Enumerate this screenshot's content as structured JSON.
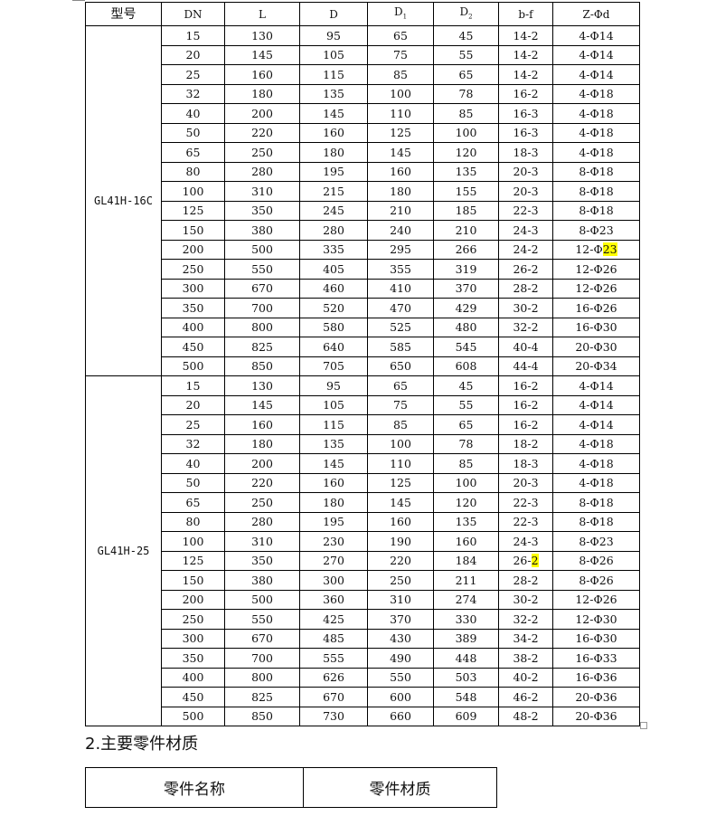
{
  "spec_table": {
    "headers": [
      "型号",
      "DN",
      "L",
      "D",
      "D1",
      "D2",
      "b-f",
      "Z-Φd"
    ],
    "groups": [
      {
        "model": "GL41H-16C",
        "rows": [
          [
            "15",
            "130",
            "95",
            "65",
            "45",
            "14-2",
            "4-Φ14"
          ],
          [
            "20",
            "145",
            "105",
            "75",
            "55",
            "14-2",
            "4-Φ14"
          ],
          [
            "25",
            "160",
            "115",
            "85",
            "65",
            "14-2",
            "4-Φ14"
          ],
          [
            "32",
            "180",
            "135",
            "100",
            "78",
            "16-2",
            "4-Φ18"
          ],
          [
            "40",
            "200",
            "145",
            "110",
            "85",
            "16-3",
            "4-Φ18"
          ],
          [
            "50",
            "220",
            "160",
            "125",
            "100",
            "16-3",
            "4-Φ18"
          ],
          [
            "65",
            "250",
            "180",
            "145",
            "120",
            "18-3",
            "4-Φ18"
          ],
          [
            "80",
            "280",
            "195",
            "160",
            "135",
            "20-3",
            "8-Φ18"
          ],
          [
            "100",
            "310",
            "215",
            "180",
            "155",
            "20-3",
            "8-Φ18"
          ],
          [
            "125",
            "350",
            "245",
            "210",
            "185",
            "22-3",
            "8-Φ18"
          ],
          [
            "150",
            "380",
            "280",
            "240",
            "210",
            "24-3",
            "8-Φ23"
          ],
          [
            "200",
            "500",
            "335",
            "295",
            "266",
            "24-2",
            "12-Φ23"
          ],
          [
            "250",
            "550",
            "405",
            "355",
            "319",
            "26-2",
            "12-Φ26"
          ],
          [
            "300",
            "670",
            "460",
            "410",
            "370",
            "28-2",
            "12-Φ26"
          ],
          [
            "350",
            "700",
            "520",
            "470",
            "429",
            "30-2",
            "16-Φ26"
          ],
          [
            "400",
            "800",
            "580",
            "525",
            "480",
            "32-2",
            "16-Φ30"
          ],
          [
            "450",
            "825",
            "640",
            "585",
            "545",
            "40-4",
            "20-Φ30"
          ],
          [
            "500",
            "850",
            "705",
            "650",
            "608",
            "44-4",
            "20-Φ34"
          ]
        ]
      },
      {
        "model": "GL41H-25",
        "rows": [
          [
            "15",
            "130",
            "95",
            "65",
            "45",
            "16-2",
            "4-Φ14"
          ],
          [
            "20",
            "145",
            "105",
            "75",
            "55",
            "16-2",
            "4-Φ14"
          ],
          [
            "25",
            "160",
            "115",
            "85",
            "65",
            "16-2",
            "4-Φ14"
          ],
          [
            "32",
            "180",
            "135",
            "100",
            "78",
            "18-2",
            "4-Φ18"
          ],
          [
            "40",
            "200",
            "145",
            "110",
            "85",
            "18-3",
            "4-Φ18"
          ],
          [
            "50",
            "220",
            "160",
            "125",
            "100",
            "20-3",
            "4-Φ18"
          ],
          [
            "65",
            "250",
            "180",
            "145",
            "120",
            "22-3",
            "8-Φ18"
          ],
          [
            "80",
            "280",
            "195",
            "160",
            "135",
            "22-3",
            "8-Φ18"
          ],
          [
            "100",
            "310",
            "230",
            "190",
            "160",
            "24-3",
            "8-Φ23"
          ],
          [
            "125",
            "350",
            "270",
            "220",
            "184",
            "26-2",
            "8-Φ26"
          ],
          [
            "150",
            "380",
            "300",
            "250",
            "211",
            "28-2",
            "8-Φ26"
          ],
          [
            "200",
            "500",
            "360",
            "310",
            "274",
            "30-2",
            "12-Φ26"
          ],
          [
            "250",
            "550",
            "425",
            "370",
            "330",
            "32-2",
            "12-Φ30"
          ],
          [
            "300",
            "670",
            "485",
            "430",
            "389",
            "34-2",
            "16-Φ30"
          ],
          [
            "350",
            "700",
            "555",
            "490",
            "448",
            "38-2",
            "16-Φ33"
          ],
          [
            "400",
            "800",
            "626",
            "550",
            "503",
            "40-2",
            "16-Φ36"
          ],
          [
            "450",
            "825",
            "670",
            "600",
            "548",
            "46-2",
            "20-Φ36"
          ],
          [
            "500",
            "850",
            "730",
            "660",
            "609",
            "48-2",
            "20-Φ36"
          ]
        ]
      }
    ],
    "highlights": [
      {
        "group": 0,
        "row": 11,
        "col": 6,
        "marked_text": "23"
      },
      {
        "group": 1,
        "row": 9,
        "col": 5,
        "marked_text": "2"
      }
    ],
    "highlight_color": "#ffff00"
  },
  "section": {
    "title": "2.主要零件材质"
  },
  "material_table": {
    "headers": [
      "零件名称",
      "零件材质"
    ]
  }
}
